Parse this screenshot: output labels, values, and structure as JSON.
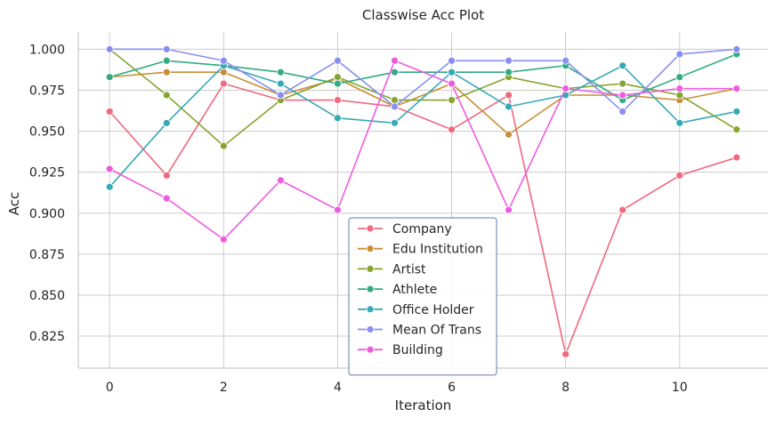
{
  "chart_data": {
    "type": "line",
    "title": "Classwise Acc Plot",
    "xlabel": "Iteration",
    "ylabel": "Acc",
    "xlim": [
      -0.55,
      11.55
    ],
    "ylim": [
      0.8055,
      1.0105
    ],
    "x_ticks": [
      0,
      2,
      4,
      6,
      8,
      10
    ],
    "x_tick_labels": [
      "0",
      "2",
      "4",
      "6",
      "8",
      "10"
    ],
    "y_ticks": [
      0.825,
      0.85,
      0.875,
      0.9,
      0.925,
      0.95,
      0.975,
      1.0
    ],
    "y_tick_labels": [
      "0.825",
      "0.850",
      "0.875",
      "0.900",
      "0.925",
      "0.950",
      "0.975",
      "1.000"
    ],
    "grid": true,
    "legend_position": "lower-center",
    "x": [
      0,
      1,
      2,
      3,
      4,
      5,
      6,
      7,
      8,
      9,
      10,
      11
    ],
    "series": [
      {
        "name": "Company",
        "color": "#f0697e",
        "values": [
          0.962,
          0.923,
          0.979,
          0.969,
          0.969,
          0.965,
          0.951,
          0.972,
          0.814,
          0.902,
          0.923,
          0.934
        ]
      },
      {
        "name": "Edu Institution",
        "color": "#c98f36",
        "values": [
          0.983,
          0.986,
          0.986,
          0.972,
          0.982,
          0.965,
          0.979,
          0.948,
          0.972,
          0.972,
          0.969,
          0.976
        ]
      },
      {
        "name": "Artist",
        "color": "#86a42f",
        "values": [
          1.0,
          0.972,
          0.941,
          0.969,
          0.983,
          0.969,
          0.969,
          0.983,
          0.976,
          0.979,
          0.972,
          0.951
        ]
      },
      {
        "name": "Athlete",
        "color": "#32ab84",
        "values": [
          0.983,
          0.993,
          0.99,
          0.986,
          0.979,
          0.986,
          0.986,
          0.986,
          0.99,
          0.969,
          0.983,
          0.997
        ]
      },
      {
        "name": "Office Holder",
        "color": "#36a9b8",
        "values": [
          0.916,
          0.955,
          0.99,
          0.979,
          0.958,
          0.955,
          0.986,
          0.965,
          0.972,
          0.99,
          0.955,
          0.962
        ]
      },
      {
        "name": "Mean Of Trans",
        "color": "#8a8ef0",
        "values": [
          1.0,
          1.0,
          0.993,
          0.972,
          0.993,
          0.965,
          0.993,
          0.993,
          0.993,
          0.962,
          0.997,
          1.0
        ]
      },
      {
        "name": "Building",
        "color": "#ef5be0",
        "values": [
          0.927,
          0.909,
          0.884,
          0.92,
          0.902,
          0.993,
          0.979,
          0.902,
          0.976,
          0.972,
          0.976,
          0.976
        ]
      }
    ]
  }
}
